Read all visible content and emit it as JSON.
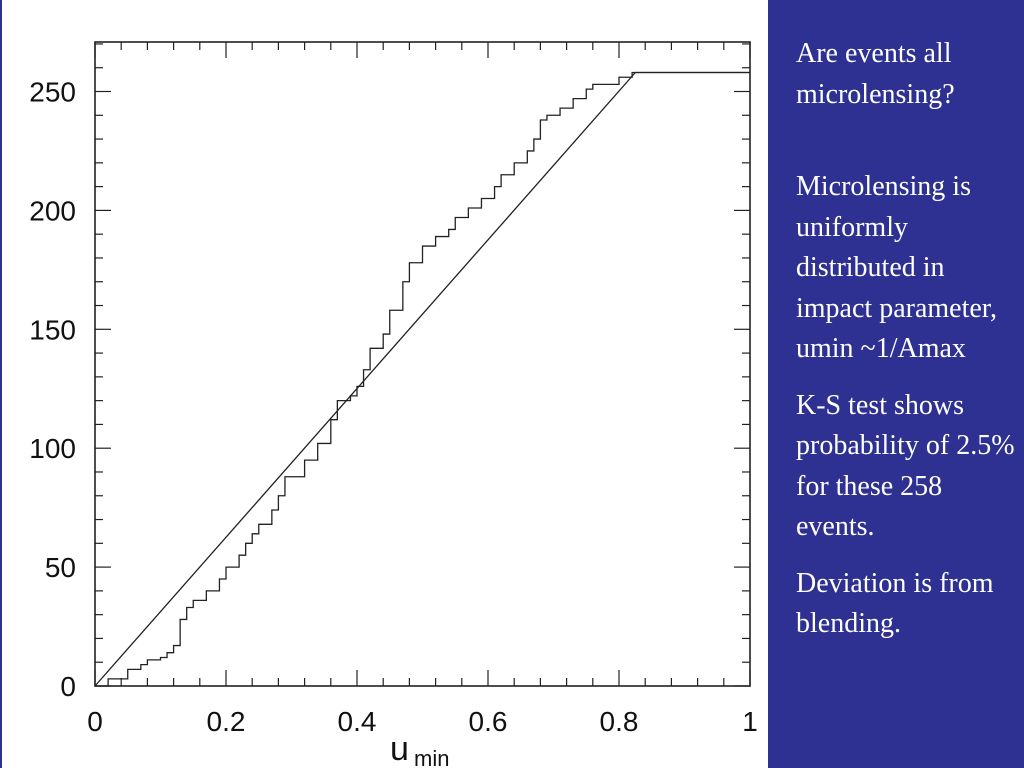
{
  "slide": {
    "bullets": [
      "Are events all microlensing?",
      "Microlensing is uniformly distributed in impact parameter, umin ~1/Amax",
      "K-S test shows probability of 2.5% for these 258 events.",
      "Deviation is from blending."
    ],
    "background_color": "#2e3192",
    "text_color": "#ffffff"
  },
  "chart_data": {
    "type": "line",
    "title": "",
    "xlabel": "u",
    "xlabel_subscript": "min",
    "ylabel": "",
    "xlim": [
      0,
      1
    ],
    "ylim": [
      0,
      270
    ],
    "x_ticks": [
      "0",
      "0.2",
      "0.4",
      "0.6",
      "0.8",
      "1"
    ],
    "y_ticks": [
      "0",
      "50",
      "100",
      "150",
      "200",
      "250"
    ],
    "grid": false,
    "series": [
      {
        "style": "step",
        "points": [
          [
            0,
            0
          ],
          [
            0.02,
            3
          ],
          [
            0.05,
            7
          ],
          [
            0.07,
            9
          ],
          [
            0.08,
            11
          ],
          [
            0.1,
            12
          ],
          [
            0.11,
            14
          ],
          [
            0.12,
            17
          ],
          [
            0.13,
            28
          ],
          [
            0.14,
            33
          ],
          [
            0.15,
            36
          ],
          [
            0.17,
            40
          ],
          [
            0.19,
            45
          ],
          [
            0.2,
            50
          ],
          [
            0.22,
            55
          ],
          [
            0.23,
            60
          ],
          [
            0.24,
            64
          ],
          [
            0.25,
            68
          ],
          [
            0.27,
            74
          ],
          [
            0.28,
            80
          ],
          [
            0.29,
            88
          ],
          [
            0.32,
            95
          ],
          [
            0.34,
            102
          ],
          [
            0.36,
            112
          ],
          [
            0.37,
            120
          ],
          [
            0.39,
            122
          ],
          [
            0.4,
            126
          ],
          [
            0.41,
            133
          ],
          [
            0.42,
            142
          ],
          [
            0.44,
            148
          ],
          [
            0.45,
            158
          ],
          [
            0.47,
            170
          ],
          [
            0.48,
            178
          ],
          [
            0.5,
            185
          ],
          [
            0.52,
            189
          ],
          [
            0.54,
            192
          ],
          [
            0.55,
            197
          ],
          [
            0.57,
            201
          ],
          [
            0.59,
            205
          ],
          [
            0.61,
            210
          ],
          [
            0.62,
            215
          ],
          [
            0.64,
            220
          ],
          [
            0.66,
            225
          ],
          [
            0.67,
            230
          ],
          [
            0.68,
            238
          ],
          [
            0.69,
            240
          ],
          [
            0.71,
            243
          ],
          [
            0.73,
            247
          ],
          [
            0.75,
            251
          ],
          [
            0.76,
            253
          ],
          [
            0.8,
            256
          ],
          [
            0.82,
            258
          ],
          [
            1.0,
            258
          ]
        ]
      },
      {
        "style": "line",
        "points": [
          [
            0,
            0
          ],
          [
            0.825,
            258
          ],
          [
            1.0,
            258
          ]
        ]
      }
    ]
  }
}
